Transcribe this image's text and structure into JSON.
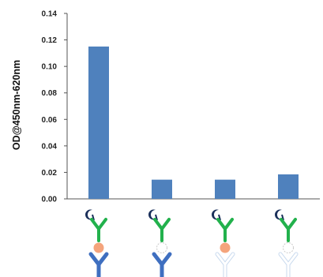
{
  "chart_data": {
    "type": "bar",
    "categories": [
      "",
      "",
      "",
      ""
    ],
    "values": [
      0.115,
      0.0145,
      0.0145,
      0.0185
    ],
    "ylabel": "OD@450nm-620nm",
    "xlabel": "",
    "title": "",
    "ylim": [
      0,
      0.14
    ],
    "yticks": [
      0.0,
      0.02,
      0.04,
      0.06,
      0.08,
      0.1,
      0.12,
      0.14
    ],
    "ytick_labels": [
      "0.00",
      "0.02",
      "0.04",
      "0.06",
      "0.08",
      "0.10",
      "0.12",
      "0.14"
    ],
    "bar_color": "#4f81bd",
    "grid": false,
    "legend": "none",
    "category_icons": [
      {
        "detection_antibody": "present",
        "antigen": "present",
        "capture_antibody": "present"
      },
      {
        "detection_antibody": "present",
        "antigen": "absent",
        "capture_antibody": "present"
      },
      {
        "detection_antibody": "present",
        "antigen": "present",
        "capture_antibody": "absent"
      },
      {
        "detection_antibody": "present",
        "antigen": "absent",
        "capture_antibody": "absent"
      }
    ],
    "icon_colors": {
      "enzyme_label": "#1a2f5a",
      "detection_antibody": "#22b14c",
      "antigen": "#f4a47c",
      "capture_antibody": "#3f6fc0",
      "absent_outline": "#9dbbe0"
    }
  }
}
